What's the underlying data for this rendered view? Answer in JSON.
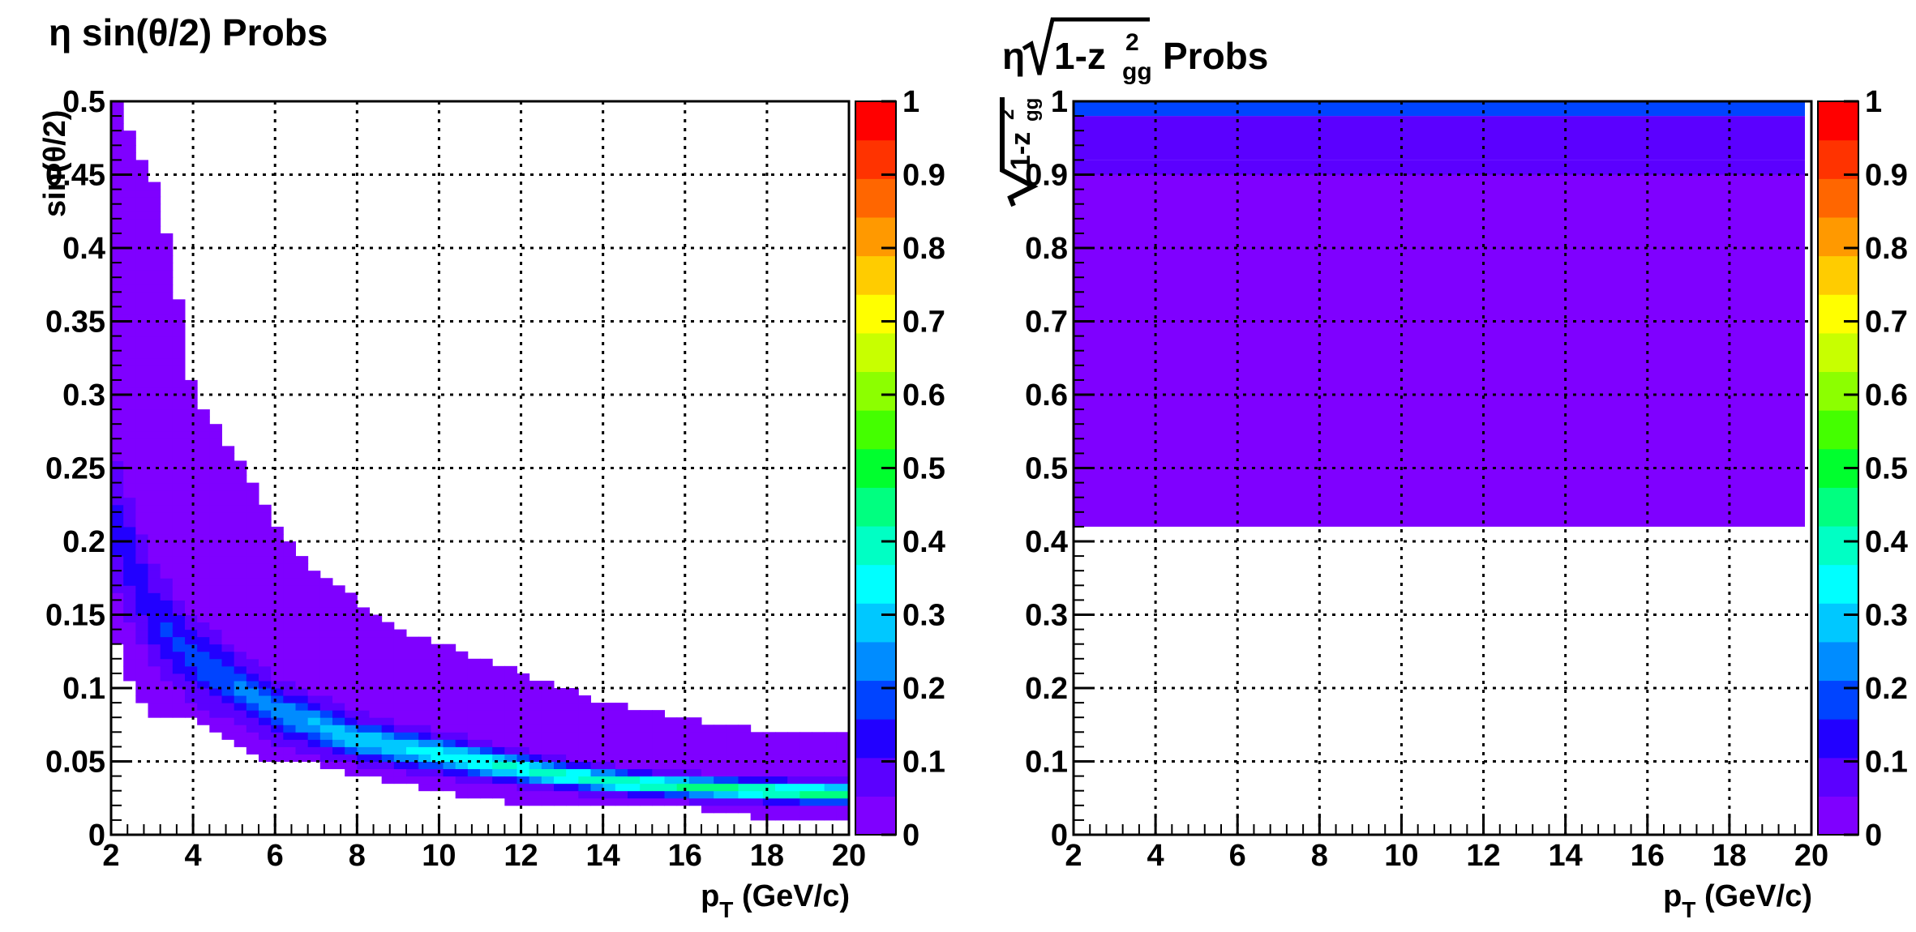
{
  "chart_data": [
    {
      "type": "heatmap",
      "title": "η sin(θ/2) Probs",
      "xlabel": "p",
      "xlabel_sub": "T",
      "xlabel_unit": "(GeV/c)",
      "ylabel": "sin(θ/2)",
      "xlim": [
        2,
        20
      ],
      "ylim": [
        0,
        0.5
      ],
      "zlim": [
        0,
        1
      ],
      "grid": true,
      "x_ticks": [
        "2",
        "4",
        "6",
        "8",
        "10",
        "12",
        "14",
        "16",
        "18",
        "20"
      ],
      "y_ticks": [
        "0",
        "0.05",
        "0.1",
        "0.15",
        "0.2",
        "0.25",
        "0.3",
        "0.35",
        "0.4",
        "0.45",
        "0.5"
      ],
      "z_ticks": [
        "0",
        "0.1",
        "0.2",
        "0.3",
        "0.4",
        "0.5",
        "0.6",
        "0.7",
        "0.8",
        "0.9",
        "1"
      ],
      "description": "Band following sin(θ/2) ≈ 0.55/pT; peak ridge narrows and rises in probability with pT, reaching ~0.45 at pT 14–20 near sin(θ/2) ≈ 0.03",
      "ridge": {
        "pT": [
          2,
          3,
          4,
          6,
          8,
          10,
          12,
          14,
          16,
          18,
          20
        ],
        "sin_half": [
          0.22,
          0.15,
          0.12,
          0.085,
          0.065,
          0.055,
          0.045,
          0.037,
          0.033,
          0.03,
          0.028
        ],
        "peak_prob": [
          0.12,
          0.15,
          0.18,
          0.24,
          0.3,
          0.35,
          0.38,
          0.42,
          0.44,
          0.45,
          0.46
        ]
      },
      "band_upper": {
        "pT": [
          2.2,
          2.6,
          3,
          3.5,
          4,
          5,
          6,
          7,
          8,
          9,
          10,
          12,
          14,
          16,
          18,
          20
        ],
        "sin_half": [
          0.5,
          0.47,
          0.45,
          0.39,
          0.3,
          0.26,
          0.21,
          0.18,
          0.16,
          0.14,
          0.13,
          0.11,
          0.09,
          0.08,
          0.07,
          0.07
        ]
      },
      "band_lower": {
        "pT": [
          2,
          2.5,
          3,
          4,
          5,
          6,
          7,
          8,
          10,
          12,
          14,
          16,
          18,
          20
        ],
        "sin_half": [
          0.14,
          0.1,
          0.08,
          0.08,
          0.06,
          0.05,
          0.05,
          0.04,
          0.03,
          0.02,
          0.02,
          0.02,
          0.01,
          0.01
        ]
      }
    },
    {
      "type": "heatmap",
      "title": "η √(1-z²gg) Probs",
      "title_parts": {
        "prefix": "η",
        "radicand": "1-z",
        "sup": "2",
        "sub": "gg",
        "suffix": "Probs"
      },
      "xlabel": "p",
      "xlabel_sub": "T",
      "xlabel_unit": "(GeV/c)",
      "ylabel": "√(1-z²gg)",
      "ylabel_parts": {
        "radicand": "1-z",
        "sup": "2",
        "sub": "gg"
      },
      "xlim": [
        2,
        20
      ],
      "ylim": [
        0,
        1
      ],
      "zlim": [
        0,
        1
      ],
      "grid": true,
      "x_ticks": [
        "2",
        "4",
        "6",
        "8",
        "10",
        "12",
        "14",
        "16",
        "18",
        "20"
      ],
      "y_ticks": [
        "0",
        "0.1",
        "0.2",
        "0.3",
        "0.4",
        "0.5",
        "0.6",
        "0.7",
        "0.8",
        "0.9",
        "1"
      ],
      "z_ticks": [
        "0",
        "0.1",
        "0.2",
        "0.3",
        "0.4",
        "0.5",
        "0.6",
        "0.7",
        "0.8",
        "0.9",
        "1"
      ],
      "bands": [
        {
          "y_range": [
            0.42,
            0.9
          ],
          "prob": 0.04
        },
        {
          "y_range": [
            0.9,
            0.92
          ],
          "prob": 0.06
        },
        {
          "y_range": [
            0.92,
            0.98
          ],
          "prob": 0.09
        },
        {
          "y_range": [
            0.98,
            1.0
          ],
          "prob": 0.2
        }
      ]
    }
  ],
  "palette": [
    "#7f00ff",
    "#5b00ff",
    "#2200ff",
    "#0044ff",
    "#008cff",
    "#00c8ff",
    "#00ffff",
    "#00ffc4",
    "#00ff80",
    "#00ff2e",
    "#44ff00",
    "#8cff00",
    "#c8ff00",
    "#ffff00",
    "#ffcc00",
    "#ff9900",
    "#ff6600",
    "#ff3300",
    "#ff0000"
  ]
}
